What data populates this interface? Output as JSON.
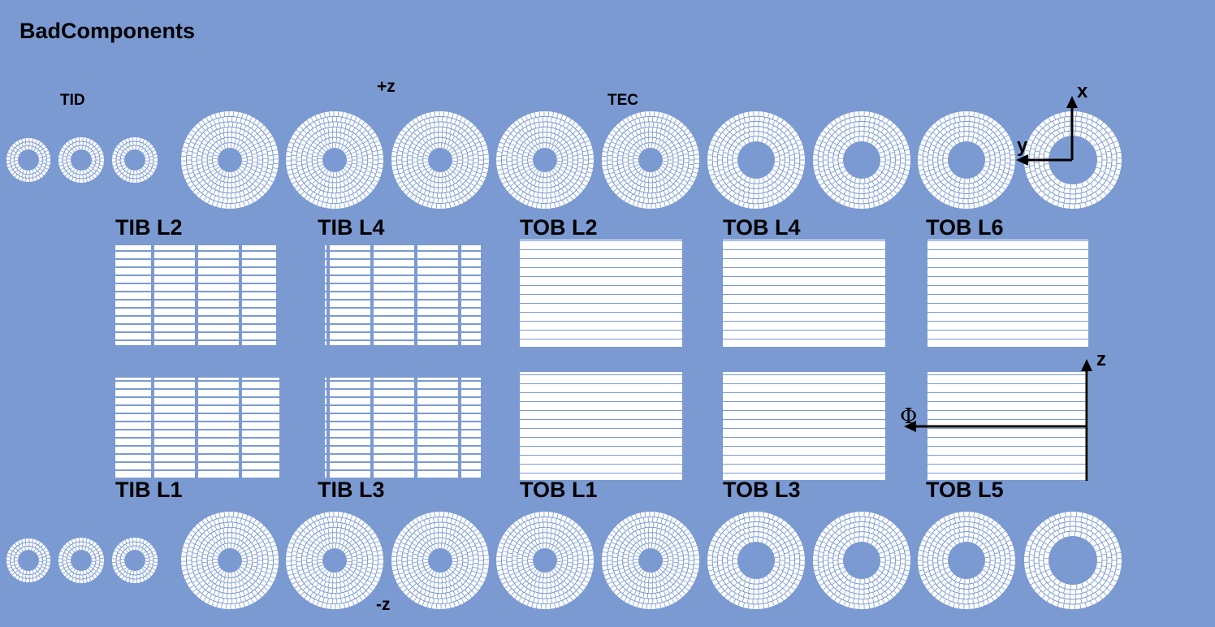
{
  "title": "BadComponents",
  "labels": {
    "tid": "TID",
    "plus_z": "+z",
    "minus_z": "-z",
    "tec": "TEC",
    "axis_x": "x",
    "axis_y": "y",
    "axis_z": "z",
    "axis_phi": "Φ"
  },
  "barrel_layers": {
    "top": [
      "TIB L2",
      "TIB L4",
      "TOB L2",
      "TOB L4",
      "TOB L6"
    ],
    "bottom": [
      "TIB L1",
      "TIB L3",
      "TOB L1",
      "TOB L3",
      "TOB L5"
    ]
  },
  "colors": {
    "background": "#7b9ad2",
    "module": "#ffffff",
    "text": "#000000"
  }
}
